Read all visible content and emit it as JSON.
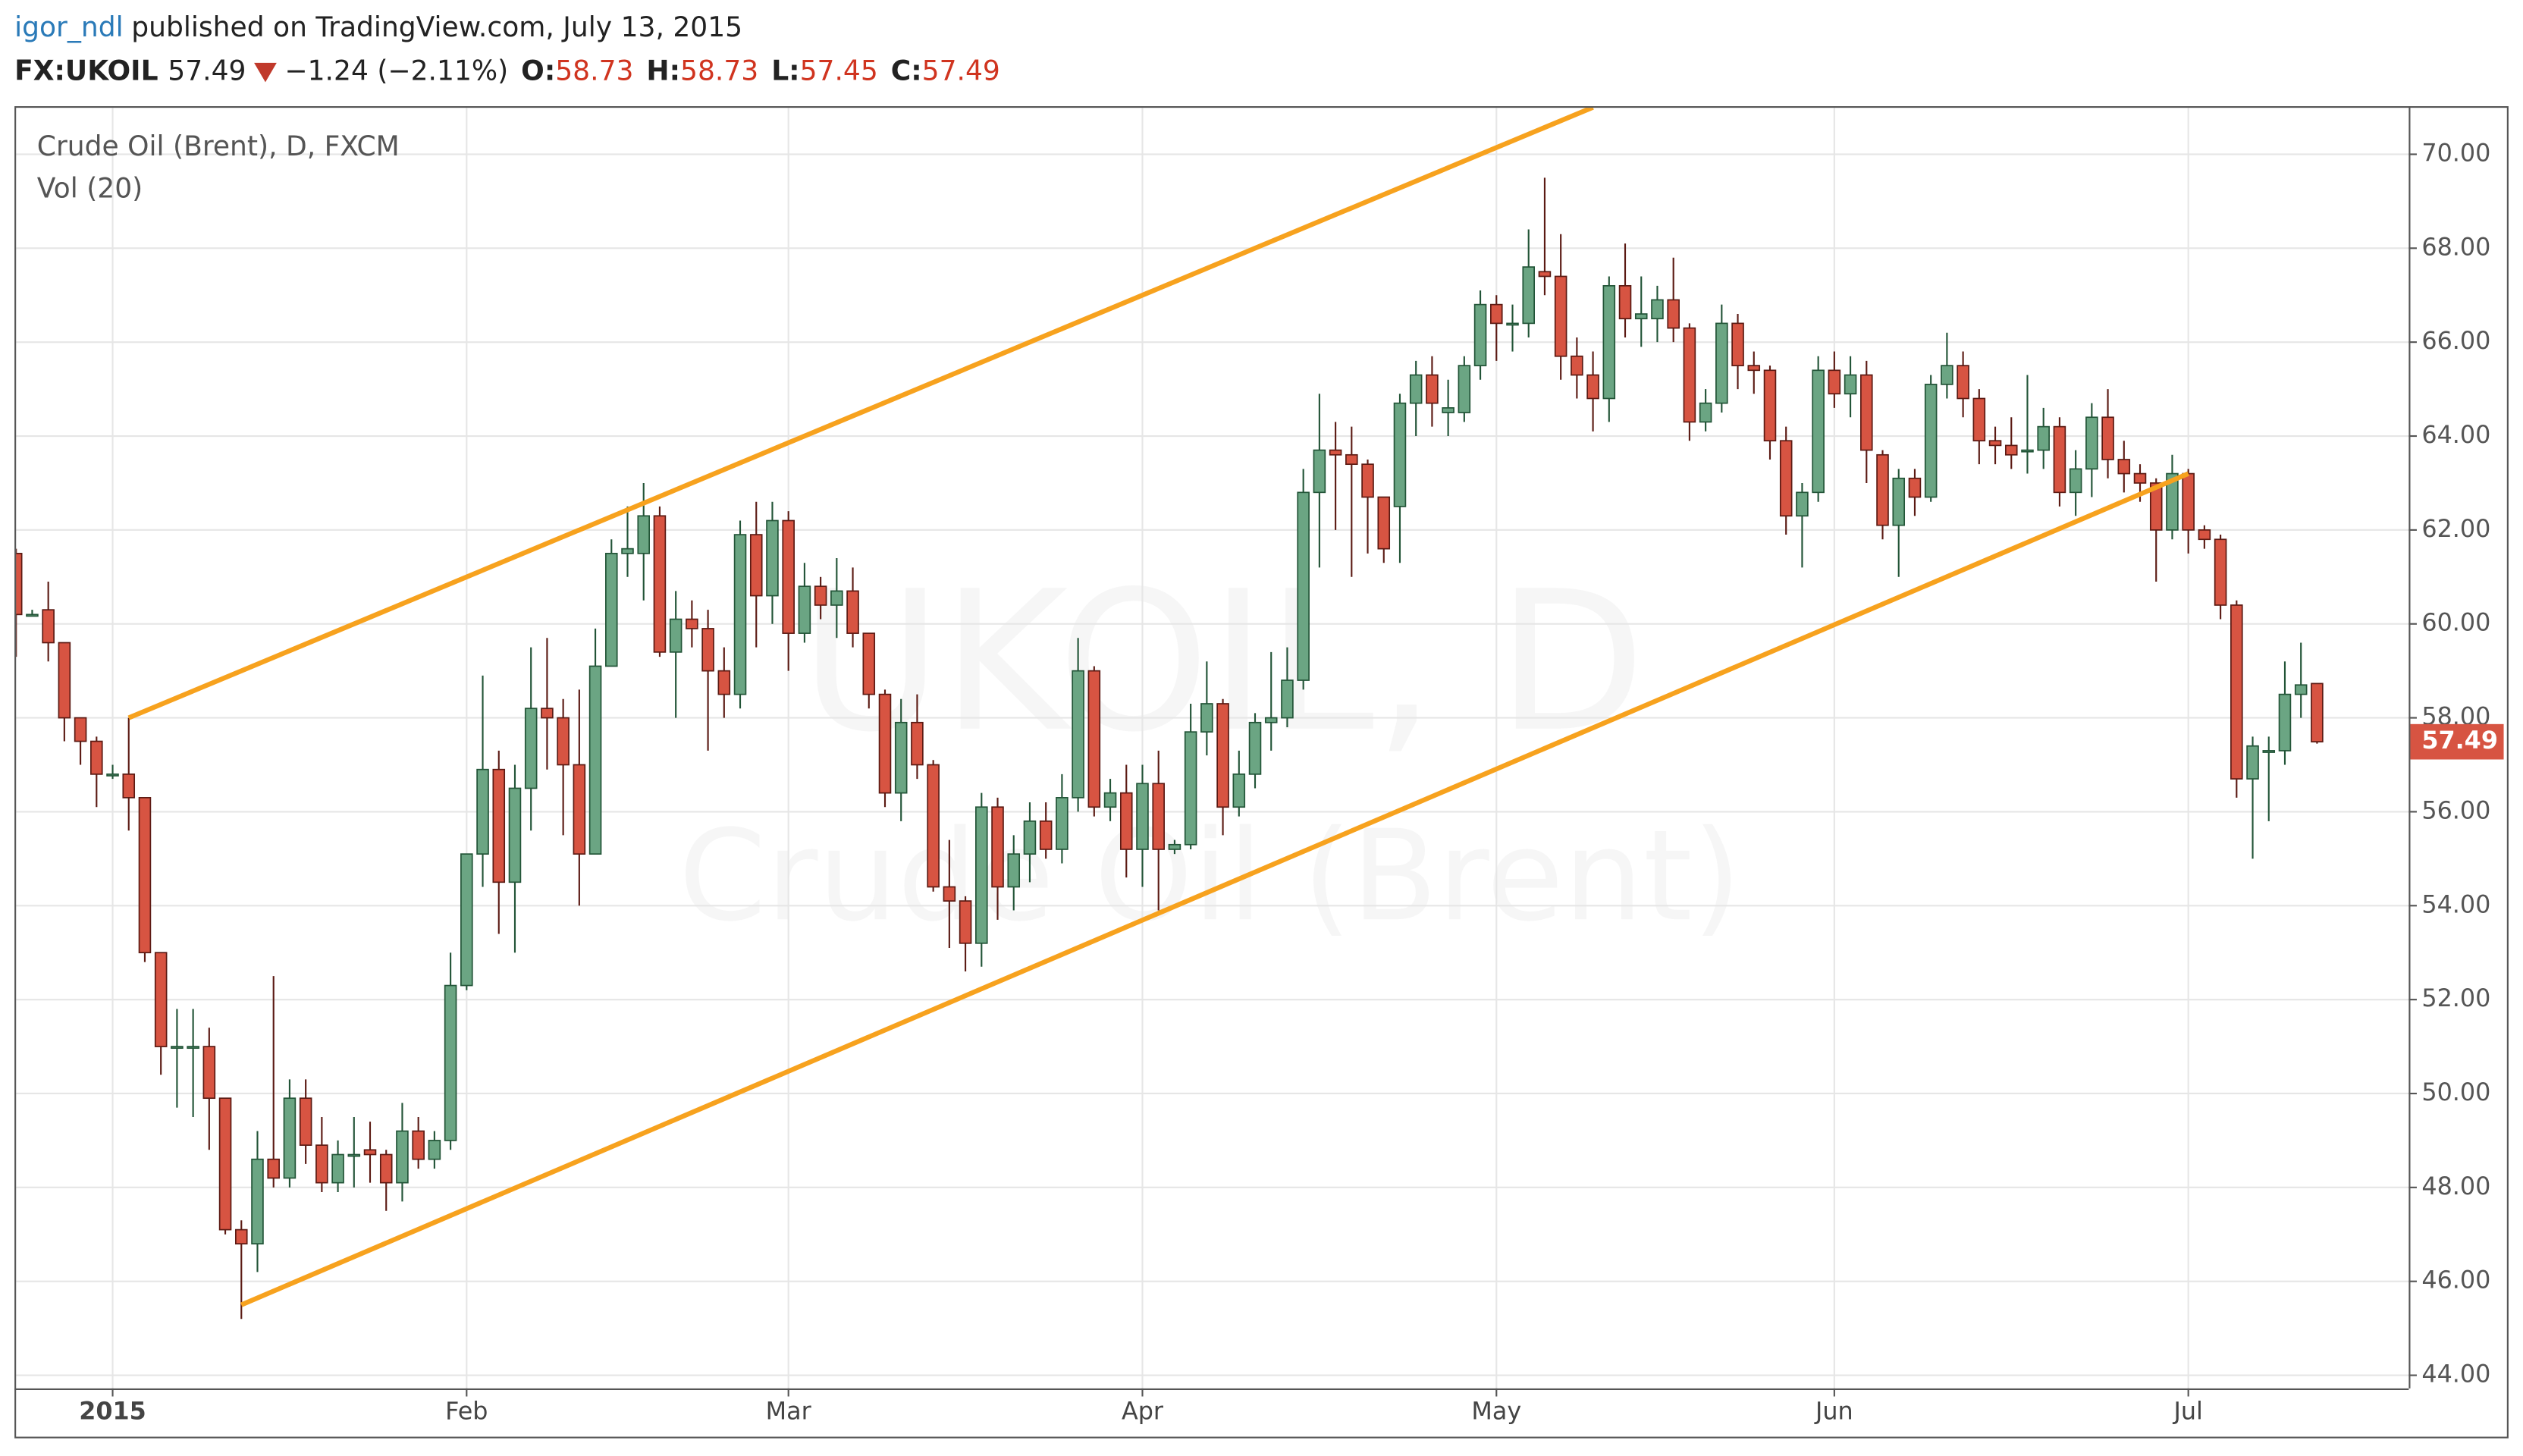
{
  "header": {
    "user": "igor_ndl",
    "published": "published on TradingView.com, July 13, 2015",
    "symbol": "FX:UKOIL",
    "last": "57.49",
    "change": "−1.24 (−2.11%)",
    "ohlc": [
      {
        "label": "O:",
        "value": "58.73"
      },
      {
        "label": "H:",
        "value": "58.73"
      },
      {
        "label": "L:",
        "value": "57.45"
      },
      {
        "label": "C:",
        "value": "57.49"
      }
    ]
  },
  "chart_data": {
    "type": "candlestick",
    "legend": [
      "Crude Oil (Brent), D, FXCM",
      "Vol (20)"
    ],
    "watermark": [
      "UKOIL, D",
      "Crude Oil (Brent)"
    ],
    "categories": [
      null,
      null,
      null,
      null,
      null,
      null,
      "2015",
      null,
      null,
      null,
      null,
      null,
      null,
      null,
      null,
      null,
      null,
      null,
      null,
      null,
      null,
      null,
      null,
      null,
      null,
      null,
      null,
      null,
      "Feb",
      null,
      null,
      null,
      null,
      null,
      null,
      null,
      null,
      null,
      null,
      null,
      null,
      null,
      null,
      null,
      null,
      null,
      null,
      null,
      "Mar",
      null,
      null,
      null,
      null,
      null,
      null,
      null,
      null,
      null,
      null,
      null,
      null,
      null,
      null,
      null,
      null,
      null,
      null,
      null,
      null,
      null,
      "Apr",
      null,
      null,
      null,
      null,
      null,
      null,
      null,
      null,
      null,
      null,
      null,
      null,
      null,
      null,
      null,
      null,
      null,
      null,
      null,
      null,
      null,
      "May",
      null,
      null,
      null,
      null,
      null,
      null,
      null,
      null,
      null,
      null,
      null,
      null,
      null,
      null,
      null,
      null,
      null,
      null,
      null,
      null,
      "Jun",
      null,
      null,
      null,
      null,
      null,
      null,
      null,
      null,
      null,
      null,
      null,
      null,
      null,
      null,
      null,
      null,
      null,
      null,
      null,
      null,
      null,
      "Jul",
      null,
      null,
      null,
      null,
      null,
      null,
      null,
      null
    ],
    "open": [
      61.5,
      60.2,
      60.3,
      59.6,
      58.0,
      57.5,
      56.8,
      56.8,
      56.3,
      53.0,
      51.0,
      51.0,
      51.0,
      49.9,
      47.1,
      46.8,
      48.6,
      48.2,
      49.9,
      48.9,
      48.1,
      48.7,
      48.8,
      48.7,
      48.1,
      49.2,
      48.6,
      49.0,
      52.3,
      55.1,
      56.9,
      54.5,
      56.5,
      58.2,
      58.0,
      57.0,
      55.1,
      59.1,
      61.5,
      61.5,
      62.3,
      59.4,
      60.1,
      59.9,
      59.0,
      58.5,
      61.9,
      60.6,
      62.2,
      59.8,
      60.8,
      60.4,
      60.7,
      59.8,
      58.5,
      56.4,
      57.9,
      57.0,
      54.4,
      54.1,
      53.2,
      56.1,
      54.4,
      55.1,
      55.8,
      55.2,
      56.3,
      59.0,
      56.1,
      56.4,
      55.2,
      56.6,
      55.2,
      55.3,
      57.7,
      58.3,
      56.1,
      56.8,
      57.9,
      58.0,
      58.8,
      62.8,
      63.7,
      63.6,
      63.4,
      62.7,
      62.5,
      64.7,
      65.3,
      64.5,
      64.5,
      65.5,
      66.8,
      66.4,
      66.4,
      67.5,
      67.4,
      65.7,
      65.3,
      64.8,
      67.2,
      66.5,
      66.5,
      66.9,
      66.3,
      64.3,
      64.7,
      66.4,
      65.5,
      65.4,
      63.9,
      62.3,
      62.8,
      65.4,
      64.9,
      65.3,
      63.6,
      62.1,
      63.1,
      62.7,
      65.1,
      65.5,
      64.8,
      63.9,
      63.8,
      63.7,
      63.7,
      64.2,
      62.8,
      63.3,
      64.4,
      63.5,
      63.2,
      63.0,
      62.0,
      63.2,
      62.0,
      61.8,
      60.4,
      56.7,
      57.3,
      57.3,
      58.5,
      58.73
    ],
    "high": [
      61.6,
      60.3,
      60.9,
      59.6,
      58.0,
      57.6,
      57.0,
      58.0,
      56.3,
      53.0,
      51.8,
      51.8,
      51.4,
      49.9,
      47.3,
      49.2,
      52.5,
      50.3,
      50.3,
      49.5,
      49.0,
      49.5,
      49.4,
      48.8,
      49.8,
      49.5,
      49.2,
      53.0,
      55.1,
      58.9,
      57.3,
      57.0,
      59.5,
      59.7,
      58.4,
      58.6,
      59.9,
      61.8,
      62.5,
      63.0,
      62.5,
      60.7,
      60.5,
      60.3,
      59.5,
      62.2,
      62.6,
      62.6,
      62.4,
      61.3,
      61.0,
      61.4,
      61.2,
      59.8,
      58.6,
      58.4,
      58.5,
      57.1,
      55.4,
      54.2,
      56.4,
      56.3,
      55.5,
      56.2,
      56.2,
      56.8,
      59.7,
      59.1,
      56.7,
      57.0,
      57.0,
      57.3,
      55.4,
      58.3,
      59.2,
      58.4,
      57.3,
      58.1,
      59.4,
      59.5,
      63.3,
      64.9,
      64.3,
      64.2,
      63.5,
      62.7,
      64.9,
      65.6,
      65.7,
      65.2,
      65.7,
      67.1,
      67.0,
      66.8,
      68.4,
      69.5,
      68.3,
      66.1,
      65.8,
      67.4,
      68.1,
      67.4,
      67.2,
      67.8,
      66.4,
      65.0,
      66.8,
      66.6,
      65.8,
      65.5,
      64.2,
      63.0,
      65.7,
      65.8,
      65.7,
      65.6,
      63.7,
      63.3,
      63.3,
      65.3,
      66.2,
      65.8,
      65.0,
      64.2,
      64.4,
      65.3,
      64.6,
      64.4,
      63.7,
      64.7,
      65.0,
      63.9,
      63.4,
      63.1,
      63.6,
      63.3,
      62.1,
      61.9,
      60.5,
      57.6,
      57.6,
      59.2,
      59.6,
      58.73
    ],
    "low": [
      59.3,
      60.2,
      59.2,
      57.5,
      57.0,
      56.1,
      56.7,
      55.6,
      52.8,
      50.4,
      49.7,
      49.5,
      48.8,
      47.0,
      45.2,
      46.2,
      48.0,
      48.0,
      48.5,
      47.9,
      47.9,
      48.0,
      48.1,
      47.5,
      47.7,
      48.4,
      48.4,
      48.8,
      52.2,
      54.4,
      53.4,
      53.0,
      55.6,
      56.9,
      55.5,
      54.0,
      55.1,
      59.1,
      61.0,
      60.5,
      59.3,
      58.0,
      59.5,
      57.3,
      58.0,
      58.2,
      59.5,
      60.0,
      59.0,
      59.6,
      60.1,
      59.7,
      59.5,
      58.2,
      56.1,
      55.8,
      56.7,
      54.3,
      53.1,
      52.6,
      52.7,
      53.7,
      53.9,
      54.5,
      55.0,
      54.9,
      56.0,
      55.9,
      55.8,
      54.6,
      54.4,
      53.9,
      55.1,
      55.2,
      57.2,
      55.5,
      55.9,
      56.5,
      57.3,
      57.8,
      58.6,
      61.2,
      62.0,
      61.0,
      61.5,
      61.3,
      61.3,
      64.0,
      64.2,
      64.0,
      64.3,
      65.2,
      65.6,
      65.8,
      66.1,
      67.0,
      65.2,
      64.8,
      64.1,
      64.3,
      66.1,
      65.9,
      66.0,
      66.0,
      63.9,
      64.1,
      64.5,
      65.0,
      64.9,
      63.5,
      61.9,
      61.2,
      62.6,
      64.6,
      64.4,
      63.0,
      61.8,
      61.0,
      62.3,
      62.6,
      64.8,
      64.4,
      63.4,
      63.4,
      63.3,
      63.2,
      63.3,
      62.5,
      62.3,
      62.7,
      63.1,
      62.8,
      62.6,
      60.9,
      61.8,
      61.5,
      61.6,
      60.1,
      56.3,
      55.0,
      55.8,
      57.0,
      58.0,
      57.45
    ],
    "close": [
      60.2,
      60.2,
      59.6,
      58.0,
      57.5,
      56.8,
      56.8,
      56.3,
      53.0,
      51.0,
      51.0,
      51.0,
      49.9,
      47.1,
      46.8,
      48.6,
      48.2,
      49.9,
      48.9,
      48.1,
      48.7,
      48.7,
      48.7,
      48.1,
      49.2,
      48.6,
      49.0,
      52.3,
      55.1,
      56.9,
      54.5,
      56.5,
      58.2,
      58.0,
      57.0,
      55.1,
      59.1,
      61.5,
      61.6,
      62.3,
      59.4,
      60.1,
      59.9,
      59.0,
      58.5,
      61.9,
      60.6,
      62.2,
      59.8,
      60.8,
      60.4,
      60.7,
      59.8,
      58.5,
      56.4,
      57.9,
      57.0,
      54.4,
      54.1,
      53.2,
      56.1,
      54.4,
      55.1,
      55.8,
      55.2,
      56.3,
      59.0,
      56.1,
      56.4,
      55.2,
      56.6,
      55.2,
      55.3,
      57.7,
      58.3,
      56.1,
      56.8,
      57.9,
      58.0,
      58.8,
      62.8,
      63.7,
      63.6,
      63.4,
      62.7,
      61.6,
      64.7,
      65.3,
      64.7,
      64.6,
      65.5,
      66.8,
      66.4,
      66.4,
      67.6,
      67.4,
      65.7,
      65.3,
      64.8,
      67.2,
      66.5,
      66.6,
      66.9,
      66.3,
      64.3,
      64.7,
      66.4,
      65.5,
      65.4,
      63.9,
      62.3,
      62.8,
      65.4,
      64.9,
      65.3,
      63.7,
      62.1,
      63.1,
      62.7,
      65.1,
      65.5,
      64.8,
      63.9,
      63.8,
      63.6,
      63.7,
      64.2,
      62.8,
      63.3,
      64.4,
      63.5,
      63.2,
      63.0,
      62.0,
      63.2,
      62.0,
      61.8,
      60.4,
      56.7,
      57.4,
      57.3,
      58.5,
      58.7,
      57.49
    ],
    "up_color": "#6ba583",
    "down_color": "#d75442",
    "up_border": "#225437",
    "down_border": "#5b1a13",
    "trend_color": "#f7a21e",
    "trend_lines": [
      {
        "start": [
          7,
          58.0
        ],
        "end": [
          98,
          71.0
        ]
      },
      {
        "start": [
          14,
          45.5
        ],
        "end": [
          135,
          63.2
        ]
      }
    ],
    "ylim": [
      43.72,
      70.99
    ],
    "yticks": [
      {
        "value": 44,
        "label": "44.00"
      },
      {
        "value": 46,
        "label": "46.00"
      },
      {
        "value": 48,
        "label": "48.00"
      },
      {
        "value": 50,
        "label": "50.00"
      },
      {
        "value": 52,
        "label": "52.00"
      },
      {
        "value": 54,
        "label": "54.00"
      },
      {
        "value": 56,
        "label": "56.00"
      },
      {
        "value": 58,
        "label": "58.00"
      },
      {
        "value": 60,
        "label": "60.00"
      },
      {
        "value": 62,
        "label": "62.00"
      },
      {
        "value": 64,
        "label": "64.00"
      },
      {
        "value": 66,
        "label": "66.00"
      },
      {
        "value": 68,
        "label": "68.00"
      },
      {
        "value": 70,
        "label": "70.00"
      }
    ],
    "grid": true
  }
}
